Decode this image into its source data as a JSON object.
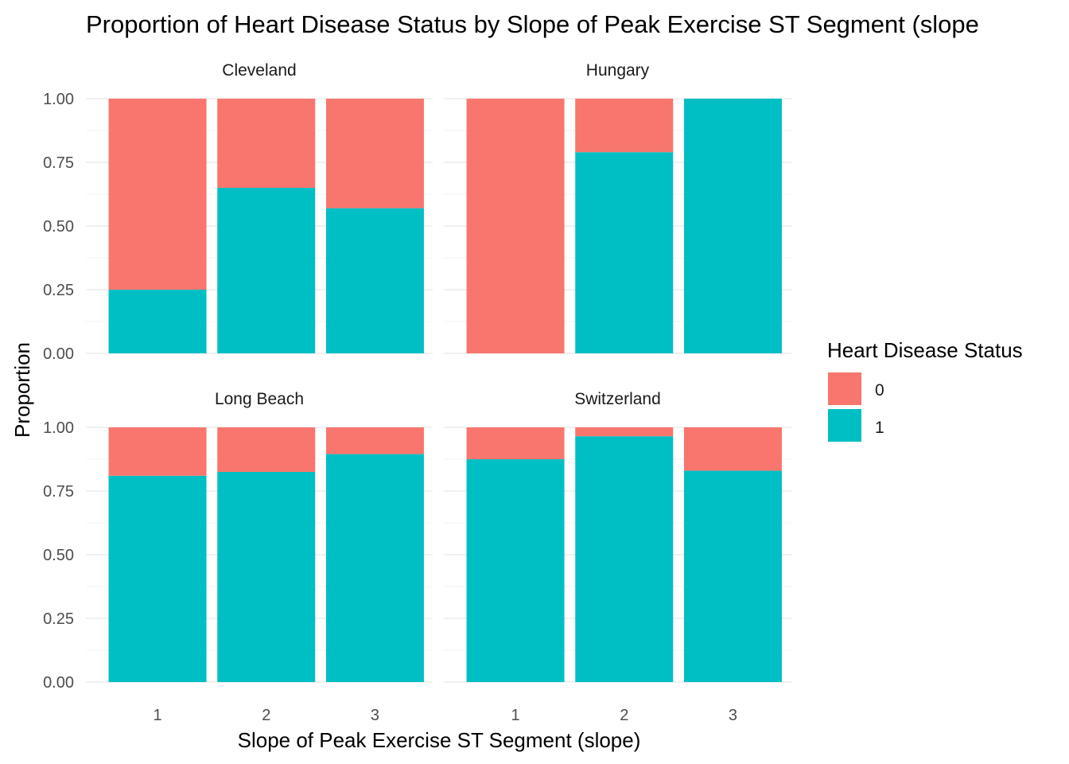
{
  "chart_data": {
    "type": "bar",
    "stacked": true,
    "title": "Proportion of Heart Disease Status by Slope of Peak Exercise ST Segment (slope",
    "xlabel": "Slope of Peak Exercise ST Segment (slope)",
    "ylabel": "Proportion",
    "categories": [
      "1",
      "2",
      "3"
    ],
    "ylim": [
      0,
      1
    ],
    "yticks": [
      "0.00",
      "0.25",
      "0.50",
      "0.75",
      "1.00"
    ],
    "grid": true,
    "legend": {
      "title": "Heart Disease Status",
      "position": "right",
      "entries": [
        {
          "label": "0",
          "color": "#F8766D"
        },
        {
          "label": "1",
          "color": "#00BFC4"
        }
      ]
    },
    "facets": [
      {
        "name": "Cleveland",
        "series": [
          {
            "name": "0",
            "values": [
              0.75,
              0.35,
              0.43
            ]
          },
          {
            "name": "1",
            "values": [
              0.25,
              0.65,
              0.57
            ]
          }
        ]
      },
      {
        "name": "Hungary",
        "series": [
          {
            "name": "0",
            "values": [
              1.0,
              0.21,
              0.0
            ]
          },
          {
            "name": "1",
            "values": [
              0.0,
              0.79,
              1.0
            ]
          }
        ]
      },
      {
        "name": "Long Beach",
        "series": [
          {
            "name": "0",
            "values": [
              0.19,
              0.175,
              0.105
            ]
          },
          {
            "name": "1",
            "values": [
              0.81,
              0.825,
              0.895
            ]
          }
        ]
      },
      {
        "name": "Switzerland",
        "series": [
          {
            "name": "0",
            "values": [
              0.125,
              0.035,
              0.17
            ]
          },
          {
            "name": "1",
            "values": [
              0.875,
              0.965,
              0.83
            ]
          }
        ]
      }
    ]
  }
}
